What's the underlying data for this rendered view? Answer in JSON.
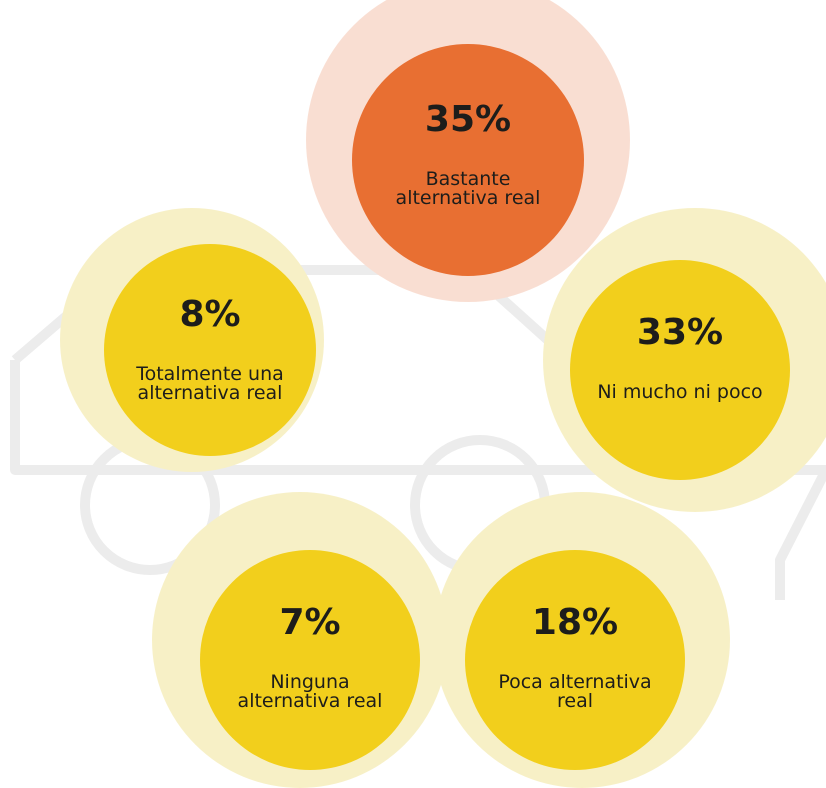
{
  "bubbles": [
    {
      "value": "35%",
      "label": "Bastante alternativa real"
    },
    {
      "value": "8%",
      "label": "Totalmente una alternativa real"
    },
    {
      "value": "33%",
      "label": "Ni mucho ni poco"
    },
    {
      "value": "7%",
      "label": "Ninguna alternativa real"
    },
    {
      "value": "18%",
      "label": "Poca alternativa real"
    }
  ]
}
